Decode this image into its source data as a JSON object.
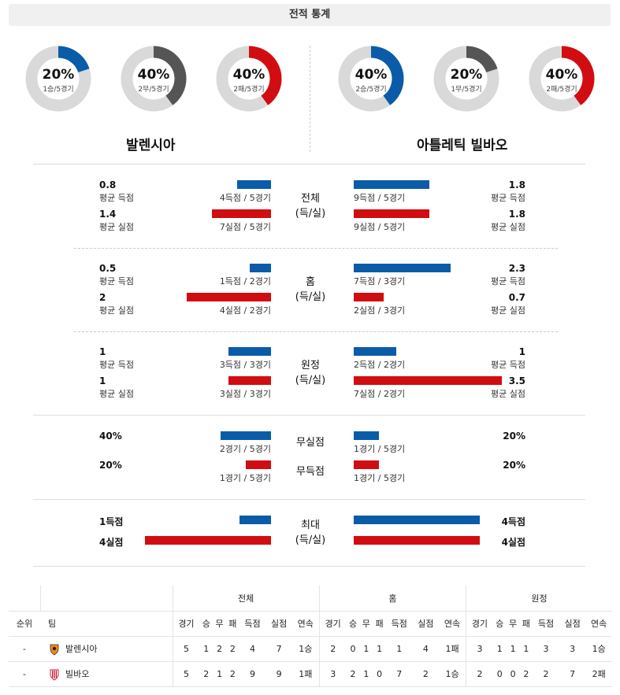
{
  "header": {
    "title": "전적 통계"
  },
  "donuts": [
    {
      "pct": "20%",
      "sub": "1승/5경기",
      "value": 0.2,
      "color": "#0a5ca8"
    },
    {
      "pct": "40%",
      "sub": "2무/5경기",
      "value": 0.4,
      "color": "#555555"
    },
    {
      "pct": "40%",
      "sub": "2패/5경기",
      "value": 0.4,
      "color": "#d10d12"
    },
    {
      "pct": "40%",
      "sub": "2승/5경기",
      "value": 0.4,
      "color": "#0a5ca8"
    },
    {
      "pct": "20%",
      "sub": "1무/5경기",
      "value": 0.2,
      "color": "#555555"
    },
    {
      "pct": "40%",
      "sub": "2패/5경기",
      "value": 0.4,
      "color": "#d10d12"
    }
  ],
  "teams": {
    "home": "발렌시아",
    "away": "아틀레틱 빌바오"
  },
  "sections": {
    "overall": {
      "label1": "전체",
      "label2": "(득/실)",
      "home_scored_avg": "0.8",
      "home_scored_label": "평균 득점",
      "home_scored_detail": "4득점 / 5경기",
      "home_scored_value": 0.8,
      "home_conceded_avg": "1.4",
      "home_conceded_label": "평균 실점",
      "home_conceded_detail": "7실점 / 5경기",
      "home_conceded_value": 1.4,
      "away_scored_avg": "1.8",
      "away_scored_label": "평균 득점",
      "away_scored_detail": "9득점 / 5경기",
      "away_scored_value": 1.8,
      "away_conceded_avg": "1.8",
      "away_conceded_label": "평균 실점",
      "away_conceded_detail": "9실점 / 5경기",
      "away_conceded_value": 1.8
    },
    "home": {
      "label1": "홈",
      "label2": "(득/실)",
      "home_scored_avg": "0.5",
      "home_scored_label": "평균 득점",
      "home_scored_detail": "1득점 / 2경기",
      "home_scored_value": 0.5,
      "home_conceded_avg": "2",
      "home_conceded_label": "평균 실점",
      "home_conceded_detail": "4실점 / 2경기",
      "home_conceded_value": 2,
      "away_scored_avg": "2.3",
      "away_scored_label": "평균 득점",
      "away_scored_detail": "7득점 / 3경기",
      "away_scored_value": 2.3,
      "away_conceded_avg": "0.7",
      "away_conceded_label": "평균 실점",
      "away_conceded_detail": "2실점 / 3경기",
      "away_conceded_value": 0.7
    },
    "away": {
      "label1": "원정",
      "label2": "(득/실)",
      "home_scored_avg": "1",
      "home_scored_label": "평균 득점",
      "home_scored_detail": "3득점 / 3경기",
      "home_scored_value": 1,
      "home_conceded_avg": "1",
      "home_conceded_label": "평균 실점",
      "home_conceded_detail": "3실점 / 3경기",
      "home_conceded_value": 1,
      "away_scored_avg": "1",
      "away_scored_label": "평균 득점",
      "away_scored_detail": "2득점 / 2경기",
      "away_scored_value": 1,
      "away_conceded_avg": "3.5",
      "away_conceded_label": "평균 실점",
      "away_conceded_detail": "7실점 / 2경기",
      "away_conceded_value": 3.5
    }
  },
  "clean": {
    "label_cs": "무실점",
    "label_fs": "무득점",
    "home_cs": "40%",
    "home_cs_detail": "2경기 / 5경기",
    "home_cs_value": 0.4,
    "home_fs": "20%",
    "home_fs_detail": "1경기 / 5경기",
    "home_fs_value": 0.2,
    "away_cs": "20%",
    "away_cs_detail": "1경기 / 5경기",
    "away_cs_value": 0.2,
    "away_fs": "20%",
    "away_fs_detail": "1경기 / 5경기",
    "away_fs_value": 0.2
  },
  "max": {
    "label1": "최대",
    "label2": "(득/실)",
    "home_scored": "1득점",
    "home_scored_value": 1,
    "home_conceded": "4실점",
    "home_conceded_value": 4,
    "away_scored": "4득점",
    "away_scored_value": 4,
    "away_conceded": "4실점",
    "away_conceded_value": 4
  },
  "table": {
    "groups": [
      "전체",
      "홈",
      "원정"
    ],
    "rank_header": "순위",
    "team_header": "팀",
    "cols": [
      "경기",
      "승",
      "무",
      "패",
      "득점",
      "실점",
      "연속"
    ],
    "rows": [
      {
        "rank": "-",
        "team": "발렌시아",
        "overall": [
          "5",
          "1",
          "2",
          "2",
          "4",
          "7",
          "1승"
        ],
        "home": [
          "2",
          "0",
          "1",
          "1",
          "1",
          "4",
          "1패"
        ],
        "away": [
          "3",
          "1",
          "1",
          "1",
          "3",
          "3",
          "1승"
        ]
      },
      {
        "rank": "-",
        "team": "빌바오",
        "overall": [
          "5",
          "2",
          "1",
          "2",
          "9",
          "9",
          "1패"
        ],
        "home": [
          "3",
          "2",
          "1",
          "0",
          "7",
          "2",
          "1승"
        ],
        "away": [
          "2",
          "0",
          "0",
          "2",
          "2",
          "7",
          "2패"
        ]
      }
    ]
  }
}
